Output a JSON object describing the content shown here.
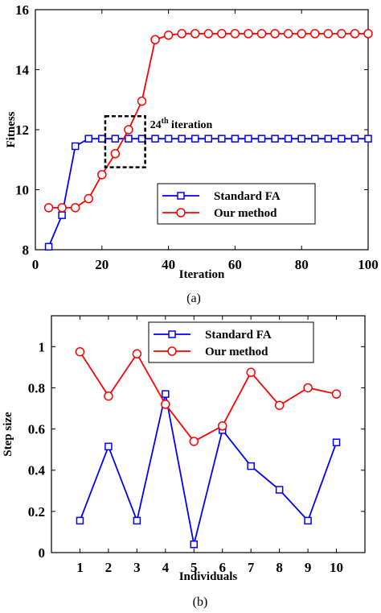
{
  "chart_data": [
    {
      "type": "line",
      "caption": "(a)",
      "xlabel": "Iteration",
      "ylabel": "Fitness",
      "xlim": [
        0,
        100
      ],
      "ylim": [
        8,
        16
      ],
      "xticks": [
        0,
        20,
        40,
        60,
        80,
        100
      ],
      "yticks": [
        8,
        10,
        12,
        14,
        16
      ],
      "legend_position": "bottom-right",
      "annotation": {
        "text_base": "24",
        "text_sup": "th",
        "text_rest": " iteration",
        "box_x": [
          21,
          33
        ],
        "box_y": [
          10.75,
          12.45
        ]
      },
      "series": [
        {
          "name": "Standard FA",
          "color": "#0000FF",
          "marker": "square",
          "x": [
            4,
            8,
            12,
            16,
            20,
            24,
            28,
            32,
            36,
            40,
            44,
            48,
            52,
            56,
            60,
            64,
            68,
            72,
            76,
            80,
            84,
            88,
            92,
            96,
            100
          ],
          "y": [
            8.1,
            9.15,
            11.45,
            11.7,
            11.7,
            11.7,
            11.7,
            11.7,
            11.7,
            11.7,
            11.7,
            11.7,
            11.7,
            11.7,
            11.7,
            11.7,
            11.7,
            11.7,
            11.7,
            11.7,
            11.7,
            11.7,
            11.7,
            11.7,
            11.7
          ]
        },
        {
          "name": "Our method",
          "color": "#FF0000",
          "marker": "circle",
          "x": [
            4,
            8,
            12,
            16,
            20,
            24,
            28,
            32,
            36,
            40,
            44,
            48,
            52,
            56,
            60,
            64,
            68,
            72,
            76,
            80,
            84,
            88,
            92,
            96,
            100
          ],
          "y": [
            9.4,
            9.4,
            9.4,
            9.7,
            10.5,
            11.2,
            12.0,
            12.95,
            15.0,
            15.15,
            15.2,
            15.2,
            15.2,
            15.2,
            15.2,
            15.2,
            15.2,
            15.2,
            15.2,
            15.2,
            15.2,
            15.2,
            15.2,
            15.2,
            15.2
          ]
        }
      ]
    },
    {
      "type": "line",
      "caption": "(b)",
      "xlabel": "Individuals",
      "ylabel": "Step size",
      "xlim": [
        0,
        11
      ],
      "ylim": [
        0,
        1.15
      ],
      "xticks": [
        1,
        2,
        3,
        4,
        5,
        6,
        7,
        8,
        9,
        10
      ],
      "yticks": [
        0,
        0.2,
        0.4,
        0.6,
        0.8,
        1
      ],
      "ytick_labels": [
        "0",
        "0.2",
        "0.4",
        "0.6",
        "0.8",
        "1"
      ],
      "legend_position": "top-center",
      "series": [
        {
          "name": "Standard FA",
          "color": "#0000FF",
          "marker": "square",
          "x": [
            1,
            2,
            3,
            4,
            5,
            6,
            7,
            8,
            9,
            10
          ],
          "y": [
            0.155,
            0.515,
            0.155,
            0.77,
            0.04,
            0.595,
            0.42,
            0.305,
            0.155,
            0.535
          ]
        },
        {
          "name": "Our method",
          "color": "#FF0000",
          "marker": "circle",
          "x": [
            1,
            2,
            3,
            4,
            5,
            6,
            7,
            8,
            9,
            10
          ],
          "y": [
            0.975,
            0.76,
            0.965,
            0.72,
            0.54,
            0.615,
            0.875,
            0.715,
            0.8,
            0.77
          ]
        }
      ]
    }
  ]
}
